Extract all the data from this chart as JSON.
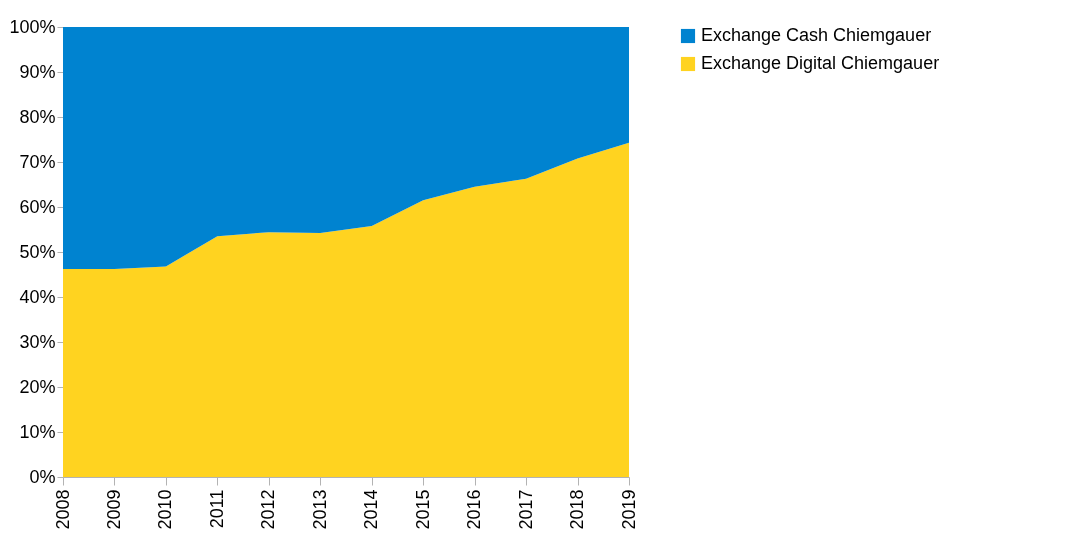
{
  "chart_data": {
    "type": "area",
    "stacked": true,
    "categories": [
      "2008",
      "2009",
      "2010",
      "2011",
      "2012",
      "2013",
      "2014",
      "2015",
      "2016",
      "2017",
      "2018",
      "2019"
    ],
    "series": [
      {
        "name": "Exchange Digital Chiemgauer",
        "color": "#ffd320",
        "values": [
          46.2,
          46.2,
          46.8,
          53.5,
          54.4,
          54.2,
          55.8,
          61.5,
          64.5,
          66.3,
          70.8,
          74.3
        ]
      },
      {
        "name": "Exchange Cash Chiemgauer",
        "color": "#0083d0",
        "values": [
          53.8,
          53.8,
          53.2,
          46.5,
          45.6,
          45.8,
          44.2,
          38.5,
          35.5,
          33.7,
          29.2,
          25.7
        ]
      }
    ],
    "ylim": [
      0,
      100
    ],
    "yticks": [
      {
        "value": 0,
        "label": "0%"
      },
      {
        "value": 10,
        "label": "10%"
      },
      {
        "value": 20,
        "label": "20%"
      },
      {
        "value": 30,
        "label": "30%"
      },
      {
        "value": 40,
        "label": "40%"
      },
      {
        "value": 50,
        "label": "50%"
      },
      {
        "value": 60,
        "label": "60%"
      },
      {
        "value": 70,
        "label": "70%"
      },
      {
        "value": 80,
        "label": "80%"
      },
      {
        "value": 90,
        "label": "90%"
      },
      {
        "value": 100,
        "label": "100%"
      }
    ],
    "legend": "right",
    "grid": false
  }
}
